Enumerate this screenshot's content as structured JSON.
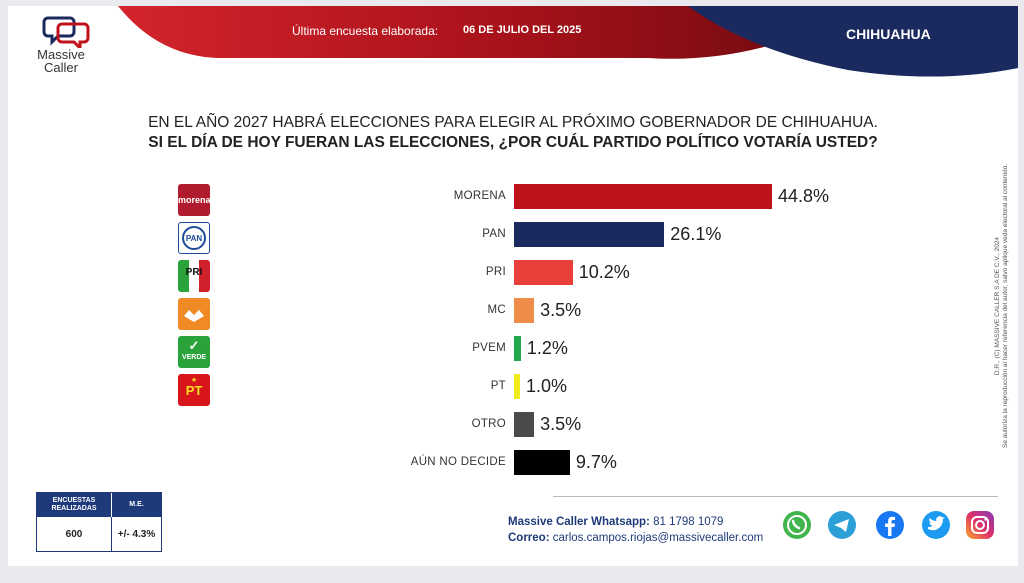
{
  "header": {
    "brand_line1": "Massive",
    "brand_line2": "Caller",
    "survey_label": "Última encuesta elaborada:",
    "survey_date": "06 DE JULIO DEL 2025",
    "region": "CHIHUAHUA",
    "colors": {
      "red": "#b5121b",
      "navy": "#1b2a5e"
    }
  },
  "question": {
    "line1": "EN EL AÑO 2027 HABRÁ ELECCIONES PARA ELEGIR AL PRÓXIMO GOBERNADOR DE CHIHUAHUA.",
    "line2": "SI EL DÍA DE HOY FUERAN LAS ELECCIONES, ¿POR CUÁL PARTIDO POLÍTICO VOTARÍA USTED?"
  },
  "party_logos": [
    {
      "icon": "morena-logo-icon",
      "text": "morena",
      "color": "#b01c2e"
    },
    {
      "icon": "pan-logo-icon",
      "text": "PAN",
      "color": "#1d4b9b"
    },
    {
      "icon": "pri-logo-icon",
      "text": "PRI",
      "color": "#d0202c"
    },
    {
      "icon": "mc-logo-icon",
      "text": "",
      "color": "#f08a24"
    },
    {
      "icon": "pvem-logo-icon",
      "text": "VERDE",
      "color": "#2aa33b"
    },
    {
      "icon": "pt-logo-icon",
      "text": "PT",
      "color": "#d8151b"
    }
  ],
  "chart_data": {
    "type": "bar",
    "orientation": "horizontal",
    "categories": [
      "MORENA",
      "PAN",
      "PRI",
      "MC",
      "PVEM",
      "PT",
      "OTRO",
      "AÚN NO DECIDE"
    ],
    "values": [
      44.8,
      26.1,
      10.2,
      3.5,
      1.2,
      1.0,
      3.5,
      9.7
    ],
    "value_labels": [
      "44.8%",
      "26.1%",
      "10.2%",
      "3.5%",
      "1.2%",
      "1.0%",
      "3.5%",
      "9.7%"
    ],
    "colors": [
      "#c0121b",
      "#1b2a5e",
      "#e8403a",
      "#ef8c4a",
      "#22a84a",
      "#f2ec1d",
      "#4a4a4a",
      "#000000"
    ],
    "xlim": [
      0,
      44.8
    ],
    "grid": false,
    "legend": "none"
  },
  "disclaimer": {
    "line1": "D.R., (C) MASSIVE CALLER S.A DE C.V., 2024",
    "line2": "Se autoriza la reproducción al hacer referencia del autor, salvo aplique veda electoral al contenido."
  },
  "stats": {
    "col1_header": "ENCUESTAS REALIZADAS",
    "col2_header": "M.E.",
    "col1_value": "600",
    "col2_value": "+/- 4.3%"
  },
  "contact": {
    "whatsapp_label": "Massive Caller Whatsapp:",
    "whatsapp_number": "81 1798 1079",
    "email_label": "Correo:",
    "email": "carlos.campos.riojas@massivecaller.com"
  },
  "social": [
    "whatsapp-icon",
    "telegram-icon",
    "facebook-icon",
    "twitter-icon",
    "instagram-icon"
  ]
}
